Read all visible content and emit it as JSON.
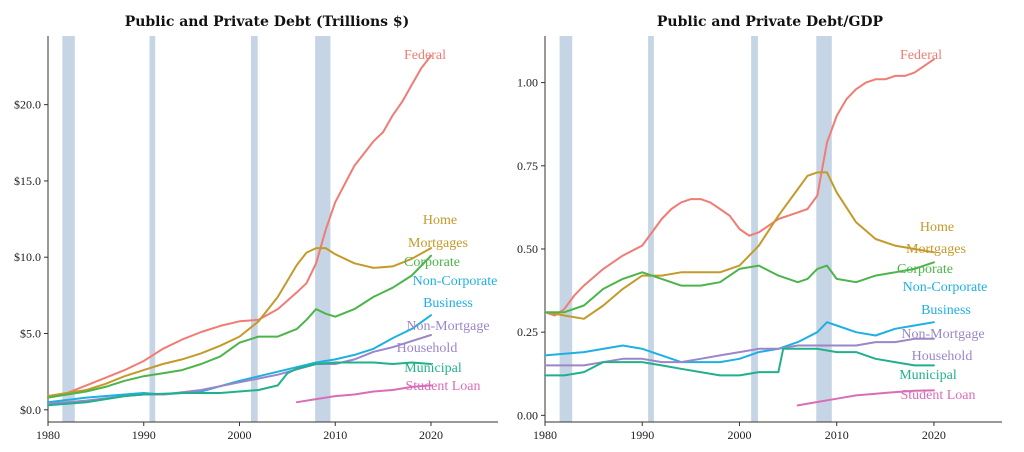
{
  "chart_data": [
    {
      "type": "line",
      "title": "Public and Private Debt (Trillions $)",
      "xlim": [
        1980,
        2027
      ],
      "ylim": [
        -0.8,
        24.5
      ],
      "x_ticks": [
        1980,
        1990,
        2000,
        2010,
        2020
      ],
      "x_tick_labels": [
        "1980",
        "1990",
        "2000",
        "2010",
        "2020"
      ],
      "y_ticks": [
        0,
        5,
        10,
        15,
        20
      ],
      "y_tick_labels": [
        "$0.0",
        "$5.0",
        "$10.0",
        "$15.0",
        "$20.0"
      ],
      "recessions": [
        [
          1981.5,
          1982.8
        ],
        [
          1990.6,
          1991.2
        ],
        [
          2001.2,
          2001.9
        ],
        [
          2007.9,
          2009.5
        ]
      ],
      "series": [
        {
          "name": "Federal",
          "color": "#F07C74",
          "x": [
            1980,
            1982,
            1984,
            1986,
            1988,
            1990,
            1992,
            1994,
            1996,
            1998,
            2000,
            2002,
            2004,
            2006,
            2007,
            2008,
            2009,
            2010,
            2011,
            2012,
            2013,
            2014,
            2015,
            2016,
            2017,
            2018,
            2019,
            2020
          ],
          "values": [
            0.9,
            1.1,
            1.6,
            2.1,
            2.6,
            3.2,
            4.0,
            4.6,
            5.1,
            5.5,
            5.8,
            5.9,
            6.6,
            7.7,
            8.3,
            9.6,
            11.8,
            13.6,
            14.8,
            16.0,
            16.8,
            17.6,
            18.2,
            19.3,
            20.2,
            21.3,
            22.4,
            23.2
          ]
        },
        {
          "name": "Home Mortgages",
          "color": "#C49A2A",
          "x": [
            1980,
            1982,
            1984,
            1986,
            1988,
            1990,
            1992,
            1994,
            1996,
            1998,
            2000,
            2002,
            2004,
            2006,
            2007,
            2008,
            2009,
            2010,
            2012,
            2014,
            2016,
            2018,
            2020
          ],
          "values": [
            0.9,
            1.1,
            1.3,
            1.7,
            2.2,
            2.6,
            3.0,
            3.3,
            3.7,
            4.2,
            4.8,
            5.8,
            7.4,
            9.5,
            10.3,
            10.6,
            10.6,
            10.2,
            9.6,
            9.3,
            9.4,
            9.9,
            10.6
          ]
        },
        {
          "name": "Corporate",
          "color": "#4CB54A",
          "x": [
            1980,
            1982,
            1984,
            1986,
            1988,
            1990,
            1992,
            1994,
            1996,
            1998,
            2000,
            2002,
            2004,
            2006,
            2007,
            2008,
            2009,
            2010,
            2012,
            2014,
            2016,
            2018,
            2020
          ],
          "values": [
            0.8,
            1.0,
            1.2,
            1.5,
            1.9,
            2.2,
            2.4,
            2.6,
            3.0,
            3.5,
            4.4,
            4.8,
            4.8,
            5.3,
            5.9,
            6.6,
            6.3,
            6.1,
            6.6,
            7.4,
            8.0,
            8.8,
            10.1
          ]
        },
        {
          "name": "Non-Corporate Business",
          "color": "#1FB0E3",
          "x": [
            1980,
            1984,
            1988,
            1990,
            1992,
            1996,
            2000,
            2004,
            2008,
            2010,
            2012,
            2014,
            2016,
            2018,
            2020
          ],
          "values": [
            0.5,
            0.8,
            1.0,
            1.1,
            1.0,
            1.2,
            1.9,
            2.5,
            3.1,
            3.3,
            3.6,
            4.0,
            4.7,
            5.3,
            6.2
          ]
        },
        {
          "name": "Household Non-Mortgage",
          "color": "#9B86C9",
          "x": [
            1980,
            1984,
            1988,
            1990,
            1992,
            1996,
            2000,
            2004,
            2008,
            2010,
            2012,
            2014,
            2016,
            2018,
            2020
          ],
          "values": [
            0.4,
            0.6,
            0.9,
            1.0,
            1.0,
            1.3,
            1.8,
            2.3,
            3.0,
            3.0,
            3.3,
            3.8,
            4.1,
            4.5,
            4.9
          ]
        },
        {
          "name": "Municipal",
          "color": "#22B08C",
          "x": [
            1980,
            1984,
            1988,
            1990,
            1994,
            1998,
            2002,
            2004,
            2005,
            2006,
            2008,
            2010,
            2012,
            2014,
            2016,
            2018,
            2020
          ],
          "values": [
            0.3,
            0.5,
            0.9,
            1.0,
            1.1,
            1.1,
            1.3,
            1.6,
            2.4,
            2.7,
            3.0,
            3.1,
            3.1,
            3.1,
            3.0,
            3.1,
            3.0
          ]
        },
        {
          "name": "Student Loan",
          "color": "#D96DB8",
          "x": [
            2006,
            2008,
            2010,
            2012,
            2014,
            2016,
            2018,
            2020
          ],
          "values": [
            0.5,
            0.7,
            0.9,
            1.0,
            1.2,
            1.3,
            1.5,
            1.6
          ]
        }
      ],
      "labels": [
        {
          "series": 0,
          "text": "Federal"
        },
        {
          "series": 1,
          "text": "Home"
        },
        {
          "series": 1,
          "text": "Mortgages"
        },
        {
          "series": 2,
          "text": "Corporate"
        },
        {
          "series": 3,
          "text": "Non-Corporate"
        },
        {
          "series": 3,
          "text": "Business"
        },
        {
          "series": 4,
          "text": "Non-Mortgage"
        },
        {
          "series": 4,
          "text": "Household"
        },
        {
          "series": 5,
          "text": "Municipal"
        },
        {
          "series": 6,
          "text": "Student Loan"
        }
      ]
    },
    {
      "type": "line",
      "title": "Public and Private Debt/GDP",
      "xlim": [
        1980,
        2027
      ],
      "ylim": [
        -0.02,
        1.14
      ],
      "x_ticks": [
        1980,
        1990,
        2000,
        2010,
        2020
      ],
      "x_tick_labels": [
        "1980",
        "1990",
        "2000",
        "2010",
        "2020"
      ],
      "y_ticks": [
        0,
        0.25,
        0.5,
        0.75,
        1.0
      ],
      "y_tick_labels": [
        "0.00",
        "0.25",
        "0.50",
        "0.75",
        "1.00"
      ],
      "recessions": [
        [
          1981.5,
          1982.8
        ],
        [
          1990.6,
          1991.2
        ],
        [
          2001.2,
          2001.9
        ],
        [
          2007.9,
          2009.5
        ]
      ],
      "series": [
        {
          "name": "Federal",
          "color": "#F07C74",
          "x": [
            1980,
            1981,
            1982,
            1983,
            1984,
            1986,
            1988,
            1990,
            1991,
            1992,
            1993,
            1994,
            1995,
            1996,
            1997,
            1998,
            1999,
            2000,
            2001,
            2002,
            2003,
            2004,
            2006,
            2007,
            2008,
            2009,
            2010,
            2011,
            2012,
            2013,
            2014,
            2015,
            2016,
            2017,
            2018,
            2019,
            2020
          ],
          "values": [
            0.31,
            0.3,
            0.32,
            0.36,
            0.39,
            0.44,
            0.48,
            0.51,
            0.55,
            0.59,
            0.62,
            0.64,
            0.65,
            0.65,
            0.64,
            0.62,
            0.6,
            0.56,
            0.54,
            0.55,
            0.57,
            0.59,
            0.61,
            0.62,
            0.66,
            0.82,
            0.9,
            0.95,
            0.98,
            1.0,
            1.01,
            1.01,
            1.02,
            1.02,
            1.03,
            1.05,
            1.07
          ]
        },
        {
          "name": "Home Mortgages",
          "color": "#C49A2A",
          "x": [
            1980,
            1982,
            1984,
            1986,
            1988,
            1990,
            1992,
            1994,
            1996,
            1998,
            2000,
            2002,
            2004,
            2006,
            2007,
            2008,
            2009,
            2010,
            2012,
            2014,
            2016,
            2018,
            2020
          ],
          "values": [
            0.31,
            0.3,
            0.29,
            0.33,
            0.38,
            0.42,
            0.42,
            0.43,
            0.43,
            0.43,
            0.45,
            0.51,
            0.6,
            0.68,
            0.72,
            0.73,
            0.73,
            0.67,
            0.58,
            0.53,
            0.51,
            0.5,
            0.49
          ]
        },
        {
          "name": "Corporate",
          "color": "#4CB54A",
          "x": [
            1980,
            1982,
            1984,
            1986,
            1988,
            1990,
            1992,
            1994,
            1996,
            1998,
            2000,
            2002,
            2004,
            2006,
            2007,
            2008,
            2009,
            2010,
            2012,
            2014,
            2016,
            2018,
            2020
          ],
          "values": [
            0.31,
            0.31,
            0.33,
            0.38,
            0.41,
            0.43,
            0.41,
            0.39,
            0.39,
            0.4,
            0.44,
            0.45,
            0.42,
            0.4,
            0.41,
            0.44,
            0.45,
            0.41,
            0.4,
            0.42,
            0.43,
            0.44,
            0.46
          ]
        },
        {
          "name": "Non-Corporate Business",
          "color": "#1FB0E3",
          "x": [
            1980,
            1984,
            1988,
            1990,
            1992,
            1994,
            1996,
            1998,
            2000,
            2002,
            2004,
            2006,
            2008,
            2009,
            2010,
            2012,
            2014,
            2016,
            2018,
            2020
          ],
          "values": [
            0.18,
            0.19,
            0.21,
            0.2,
            0.18,
            0.16,
            0.16,
            0.16,
            0.17,
            0.19,
            0.2,
            0.22,
            0.25,
            0.28,
            0.27,
            0.25,
            0.24,
            0.26,
            0.27,
            0.28
          ]
        },
        {
          "name": "Household Non-Mortgage",
          "color": "#9B86C9",
          "x": [
            1980,
            1984,
            1988,
            1990,
            1992,
            1994,
            1996,
            1998,
            2000,
            2002,
            2004,
            2006,
            2008,
            2010,
            2012,
            2014,
            2016,
            2018,
            2020
          ],
          "values": [
            0.15,
            0.15,
            0.17,
            0.17,
            0.16,
            0.16,
            0.17,
            0.18,
            0.19,
            0.2,
            0.2,
            0.21,
            0.21,
            0.21,
            0.21,
            0.22,
            0.22,
            0.23,
            0.23
          ]
        },
        {
          "name": "Municipal",
          "color": "#22B08C",
          "x": [
            1980,
            1982,
            1984,
            1986,
            1988,
            1990,
            1992,
            1994,
            1996,
            1998,
            2000,
            2002,
            2004,
            2004.5,
            2006,
            2008,
            2010,
            2012,
            2014,
            2016,
            2018,
            2020
          ],
          "values": [
            0.12,
            0.12,
            0.13,
            0.16,
            0.16,
            0.16,
            0.15,
            0.14,
            0.13,
            0.12,
            0.12,
            0.13,
            0.13,
            0.2,
            0.2,
            0.2,
            0.19,
            0.19,
            0.17,
            0.16,
            0.15,
            0.15
          ]
        },
        {
          "name": "Student Loan",
          "color": "#D96DB8",
          "x": [
            2006,
            2008,
            2010,
            2012,
            2014,
            2016,
            2018,
            2020
          ],
          "values": [
            0.03,
            0.04,
            0.05,
            0.06,
            0.065,
            0.07,
            0.074,
            0.075
          ]
        }
      ],
      "labels": [
        {
          "series": 0,
          "text": "Federal"
        },
        {
          "series": 1,
          "text": "Home"
        },
        {
          "series": 1,
          "text": "Mortgages"
        },
        {
          "series": 2,
          "text": "Corporate"
        },
        {
          "series": 3,
          "text": "Non-Corporate"
        },
        {
          "series": 3,
          "text": "Business"
        },
        {
          "series": 4,
          "text": "Non-Mortgage"
        },
        {
          "series": 4,
          "text": "Household"
        },
        {
          "series": 5,
          "text": "Municipal"
        },
        {
          "series": 6,
          "text": "Student Loan"
        }
      ]
    }
  ],
  "style": {
    "recession_color": "#C6D5E6",
    "axis_color": "#333333"
  }
}
